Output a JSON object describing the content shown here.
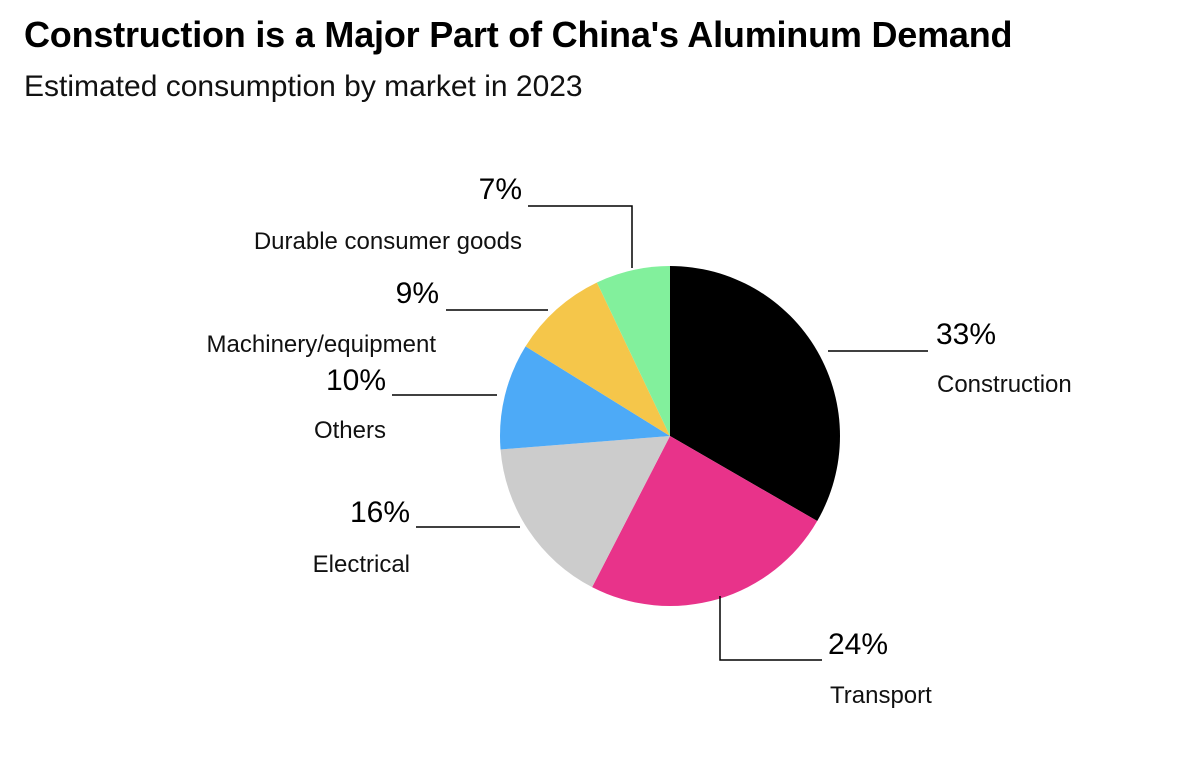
{
  "header": {
    "title": "Construction is a Major Part of China's Aluminum Demand",
    "subtitle": "Estimated consumption by market in 2023"
  },
  "chart_data": {
    "type": "pie",
    "title": "Construction is a Major Part of China's Aluminum Demand",
    "subtitle": "Estimated consumption by market in 2023",
    "slices": [
      {
        "label": "Construction",
        "value": 33,
        "value_label": "33%",
        "color": "#000000"
      },
      {
        "label": "Transport",
        "value": 24,
        "value_label": "24%",
        "color": "#e8338a"
      },
      {
        "label": "Electrical",
        "value": 16,
        "value_label": "16%",
        "color": "#cccccc"
      },
      {
        "label": "Others",
        "value": 10,
        "value_label": "10%",
        "color": "#4daaf7"
      },
      {
        "label": "Machinery/equipment",
        "value": 9,
        "value_label": "9%",
        "color": "#f5c64a"
      },
      {
        "label": "Durable consumer goods",
        "value": 7,
        "value_label": "7%",
        "color": "#82f09c"
      }
    ],
    "start_angle": "12 o'clock",
    "direction": "clockwise",
    "legend": "none (direct labels with leader lines)"
  }
}
